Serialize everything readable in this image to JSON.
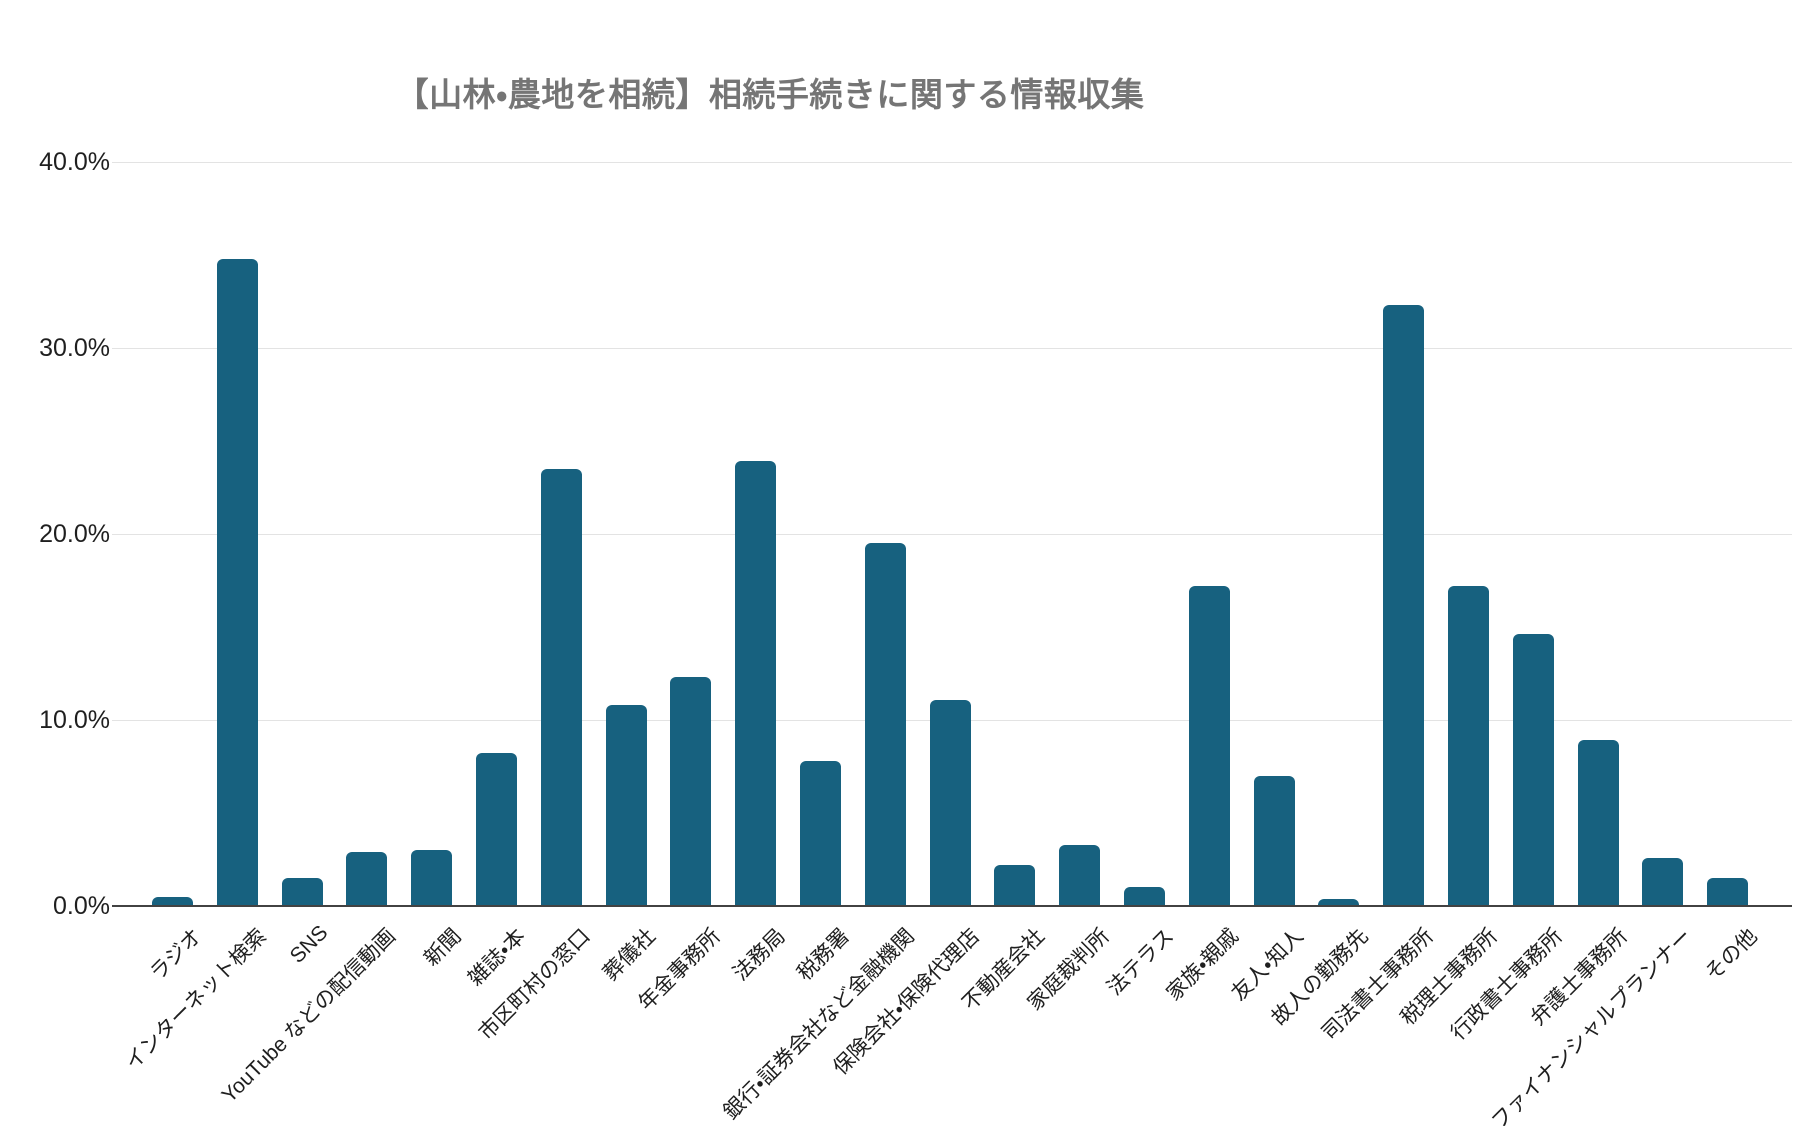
{
  "title": "【山林・農地を相続】相続手続きに関する情報収集",
  "colors": {
    "bar": "#17617F",
    "gridline": "#e3e3e3",
    "axis_line": "#424242",
    "title_text": "#757575",
    "tick_text": "#1f1f1f",
    "background": "#ffffff"
  },
  "chart_data": {
    "type": "bar",
    "title": "【山林・農地を相続】相続手続きに関する情報収集",
    "xlabel": "",
    "ylabel": "",
    "ylim": [
      0,
      40
    ],
    "yticks": [
      "0.0%",
      "10.0%",
      "20.0%",
      "30.0%",
      "40.0%"
    ],
    "grid": true,
    "legend_position": "none",
    "categories": [
      "ラジオ",
      "インターネット検索",
      "SNS",
      "YouTube などの配信動画",
      "新聞",
      "雑誌・本",
      "市区町村の窓口",
      "葬儀社",
      "年金事務所",
      "法務局",
      "税務署",
      "銀行・証券会社など金融機関",
      "保険会社・保険代理店",
      "不動産会社",
      "家庭裁判所",
      "法テラス",
      "家族・親戚",
      "友人・知人",
      "故人の勤務先",
      "司法書士事務所",
      "税理士事務所",
      "行政書士事務所",
      "弁護士事務所",
      "ファイナンシャルプランナー",
      "その他"
    ],
    "values": [
      0.5,
      34.8,
      1.5,
      2.9,
      3.0,
      8.2,
      23.5,
      10.8,
      12.3,
      23.9,
      7.8,
      19.5,
      11.1,
      2.2,
      3.3,
      1.0,
      17.2,
      7.0,
      0.4,
      32.3,
      17.2,
      14.6,
      8.9,
      2.6,
      1.5
    ]
  }
}
